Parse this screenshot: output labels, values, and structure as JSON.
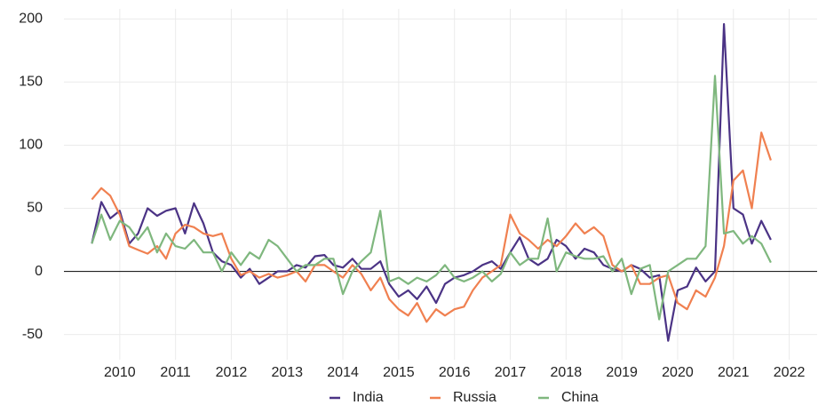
{
  "chart_data": {
    "type": "line",
    "x": [
      2009.5,
      2009.67,
      2009.83,
      2010,
      2010.17,
      2010.33,
      2010.5,
      2010.67,
      2010.83,
      2011,
      2011.17,
      2011.33,
      2011.5,
      2011.67,
      2011.83,
      2012,
      2012.17,
      2012.33,
      2012.5,
      2012.67,
      2012.83,
      2013,
      2013.17,
      2013.33,
      2013.5,
      2013.67,
      2013.83,
      2014,
      2014.17,
      2014.33,
      2014.5,
      2014.67,
      2014.83,
      2015,
      2015.17,
      2015.33,
      2015.5,
      2015.67,
      2015.83,
      2016,
      2016.17,
      2016.33,
      2016.5,
      2016.67,
      2016.83,
      2017,
      2017.17,
      2017.33,
      2017.5,
      2017.67,
      2017.83,
      2018,
      2018.17,
      2018.33,
      2018.5,
      2018.67,
      2018.83,
      2019,
      2019.17,
      2019.33,
      2019.5,
      2019.67,
      2019.83,
      2020,
      2020.17,
      2020.33,
      2020.5,
      2020.67,
      2020.83,
      2021,
      2021.17,
      2021.33,
      2021.5,
      2021.67
    ],
    "series": [
      {
        "name": "India",
        "color": "#4b3385",
        "values": [
          22,
          55,
          42,
          48,
          22,
          30,
          50,
          44,
          48,
          50,
          30,
          54,
          38,
          15,
          8,
          5,
          -5,
          2,
          -10,
          -5,
          0,
          0,
          5,
          3,
          12,
          13,
          5,
          3,
          10,
          2,
          2,
          8,
          -10,
          -20,
          -15,
          -22,
          -12,
          -25,
          -10,
          -5,
          -3,
          0,
          5,
          8,
          2,
          15,
          27,
          10,
          5,
          10,
          25,
          20,
          10,
          18,
          15,
          5,
          2,
          0,
          5,
          2,
          -5,
          -3,
          -55,
          -15,
          -12,
          3,
          -8,
          0,
          196,
          50,
          45,
          22,
          40,
          25
        ]
      },
      {
        "name": "Russia",
        "color": "#f08050",
        "values": [
          57,
          66,
          60,
          45,
          20,
          17,
          14,
          20,
          10,
          30,
          37,
          35,
          30,
          28,
          30,
          10,
          -3,
          0,
          -5,
          -2,
          -5,
          -3,
          0,
          -8,
          5,
          5,
          0,
          -5,
          5,
          -2,
          -15,
          -5,
          -22,
          -30,
          -35,
          -25,
          -40,
          -30,
          -35,
          -30,
          -28,
          -15,
          -5,
          0,
          5,
          45,
          30,
          25,
          18,
          25,
          20,
          28,
          38,
          30,
          35,
          28,
          5,
          0,
          5,
          -10,
          -10,
          -5,
          -3,
          -25,
          -30,
          -15,
          -20,
          -5,
          20,
          72,
          80,
          50,
          110,
          88
        ]
      },
      {
        "name": "China",
        "color": "#7fb77e",
        "values": [
          22,
          45,
          25,
          40,
          35,
          25,
          35,
          15,
          30,
          20,
          18,
          25,
          15,
          15,
          0,
          15,
          5,
          15,
          10,
          25,
          20,
          10,
          0,
          5,
          5,
          10,
          10,
          -18,
          0,
          8,
          15,
          48,
          -8,
          -5,
          -10,
          -5,
          -8,
          -3,
          5,
          -5,
          -8,
          -5,
          0,
          -8,
          -2,
          15,
          5,
          10,
          10,
          42,
          0,
          15,
          12,
          10,
          10,
          12,
          0,
          10,
          -18,
          2,
          5,
          -38,
          0,
          5,
          10,
          10,
          20,
          155,
          30,
          32,
          22,
          28,
          22,
          7
        ]
      }
    ],
    "xlim": [
      2009,
      2022.5
    ],
    "xticks": [
      2010,
      2011,
      2012,
      2013,
      2014,
      2015,
      2016,
      2017,
      2018,
      2019,
      2020,
      2021,
      2022
    ],
    "ylim": [
      -70,
      208
    ],
    "yticks": [
      -50,
      0,
      50,
      100,
      150,
      200
    ],
    "grid": true,
    "legend": "bottom"
  }
}
